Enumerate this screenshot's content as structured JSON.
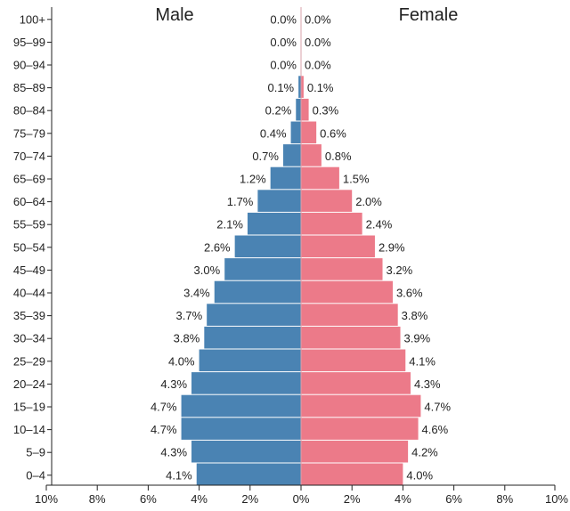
{
  "chart_data": {
    "type": "bar",
    "orientation": "horizontal",
    "layout": "population-pyramid",
    "title": "",
    "xlabel": "",
    "ylabel": "",
    "categories": [
      "100+",
      "95–99",
      "90–94",
      "85–89",
      "80–84",
      "75–79",
      "70–74",
      "65–69",
      "60–64",
      "55–59",
      "50–54",
      "45–49",
      "40–44",
      "35–39",
      "30–34",
      "25–29",
      "20–24",
      "15–19",
      "10–14",
      "5–9",
      "0–4"
    ],
    "series": [
      {
        "name": "Male",
        "side": "left",
        "color": "#4a83b3",
        "values": [
          0.0,
          0.0,
          0.0,
          0.1,
          0.2,
          0.4,
          0.7,
          1.2,
          1.7,
          2.1,
          2.6,
          3.0,
          3.4,
          3.7,
          3.8,
          4.0,
          4.3,
          4.7,
          4.7,
          4.3,
          4.1
        ],
        "labels": [
          "0.0%",
          "0.0%",
          "0.0%",
          "0.1%",
          "0.2%",
          "0.4%",
          "0.7%",
          "1.2%",
          "1.7%",
          "2.1%",
          "2.6%",
          "3.0%",
          "3.4%",
          "3.7%",
          "3.8%",
          "4.0%",
          "4.3%",
          "4.7%",
          "4.7%",
          "4.3%",
          "4.1%"
        ]
      },
      {
        "name": "Female",
        "side": "right",
        "color": "#ec7a89",
        "values": [
          0.0,
          0.0,
          0.0,
          0.1,
          0.3,
          0.6,
          0.8,
          1.5,
          2.0,
          2.4,
          2.9,
          3.2,
          3.6,
          3.8,
          3.9,
          4.1,
          4.3,
          4.7,
          4.6,
          4.2,
          4.0
        ],
        "labels": [
          "0.0%",
          "0.0%",
          "0.0%",
          "0.1%",
          "0.3%",
          "0.6%",
          "0.8%",
          "1.5%",
          "2.0%",
          "2.4%",
          "2.9%",
          "3.2%",
          "3.6%",
          "3.8%",
          "3.9%",
          "4.1%",
          "4.3%",
          "4.7%",
          "4.6%",
          "4.2%",
          "4.0%"
        ]
      }
    ],
    "xlim": [
      -10,
      10
    ],
    "xticks": [
      -10,
      -8,
      -6,
      -4,
      -2,
      0,
      2,
      4,
      6,
      8,
      10
    ],
    "xtick_labels": [
      "10%",
      "8%",
      "6%",
      "4%",
      "2%",
      "0%",
      "2%",
      "4%",
      "6%",
      "8%",
      "10%"
    ],
    "grid": false,
    "legend": "none",
    "axis_color": "#222222",
    "bar_separator_color": "#ffffff"
  }
}
